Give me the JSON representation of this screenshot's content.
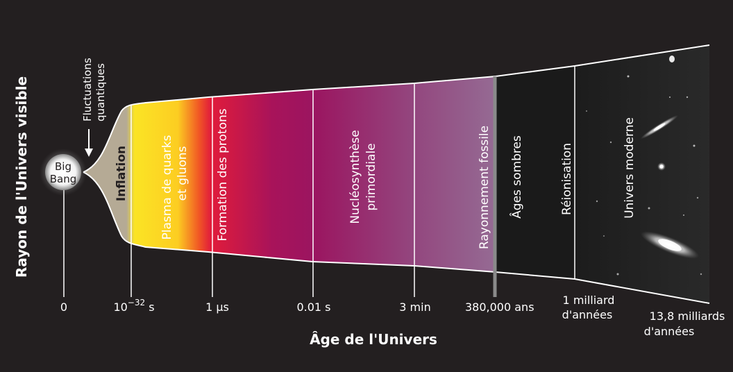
{
  "y_axis_label": "Rayon de l'Univers visible",
  "x_axis_label": "Âge de l'Univers",
  "big_bang": {
    "line1": "Big",
    "line2": "Bang"
  },
  "fluctuations": {
    "line1": "Fluctuations",
    "line2": "quantiques"
  },
  "inflation_label": "Inflation",
  "eras": {
    "quark_plasma": {
      "line1": "Plasma de quarks",
      "line2": "et gluons"
    },
    "protons": "Formation des protons",
    "nucleosynthesis": {
      "line1": "Nucléosynthèse",
      "line2": "primordiale"
    },
    "cmb": "Rayonnement fossile",
    "dark_ages": "Âges sombres",
    "reionization": "Réionisation",
    "modern": "Univers  moderne"
  },
  "ticks": {
    "zero": "0",
    "planck_base": "10",
    "planck_exp": "−32",
    "planck_unit": " s",
    "microsecond": "1  µs",
    "centisecond": "0.01 s",
    "minutes": "3 min",
    "years_380k": "380,000  ans",
    "billion": {
      "line1": "1 milliard",
      "line2": "d'années"
    },
    "now": {
      "line1": "13,8 milliards",
      "line2": "d'années"
    }
  },
  "colors": {
    "background": "#231f20",
    "inflation": "#b5aa95",
    "quark_yellow": "#fbe425",
    "proton_red": "#e11c3b",
    "magenta": "#9b1560",
    "cmb_mauve": "#946093",
    "dark_ages": "#1a1a1a",
    "outline": "#ffffff"
  }
}
